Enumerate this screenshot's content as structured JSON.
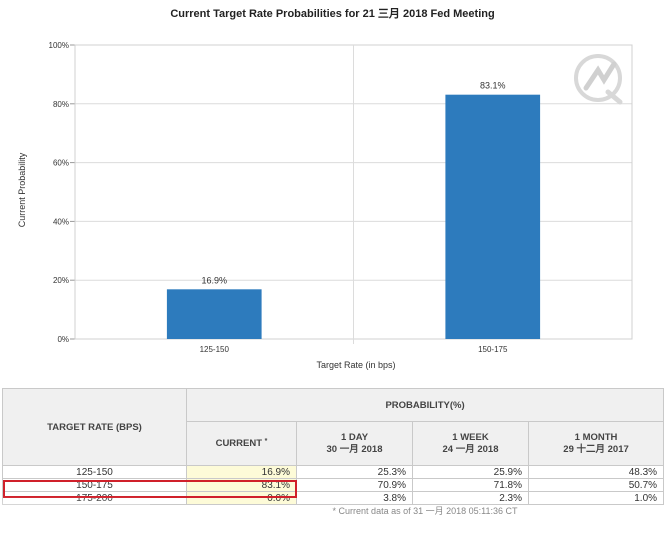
{
  "chart_data": {
    "type": "bar",
    "title": "Current Target Rate Probabilities for 21 三月 2018  Fed Meeting",
    "xlabel": "Target Rate (in bps)",
    "ylabel": "Current Probability",
    "categories": [
      "125-150",
      "150-175"
    ],
    "values": [
      16.9,
      83.1
    ],
    "data_labels": [
      "16.9%",
      "83.1%"
    ],
    "ylim": [
      0,
      100
    ],
    "yticks": [
      0,
      20,
      40,
      60,
      80,
      100
    ],
    "ytick_labels": [
      "0%",
      "20%",
      "40%",
      "60%",
      "80%",
      "100%"
    ],
    "grid": true,
    "bar_color": "#2d7bbd"
  },
  "table": {
    "rate_header": "TARGET RATE (BPS)",
    "prob_header": "PROBABILITY(%)",
    "current_header": "CURRENT",
    "current_mark": "*",
    "col1_line1": "1 DAY",
    "col1_line2": "30 一月 2018",
    "col2_line1": "1 WEEK",
    "col2_line2": "24 一月 2018",
    "col3_line1": "1 MONTH",
    "col3_line2": "29 十二月 2017",
    "rows": [
      {
        "rate": "125-150",
        "current": "16.9%",
        "day": "25.3%",
        "week": "25.9%",
        "month": "48.3%"
      },
      {
        "rate": "150-175",
        "current": "83.1%",
        "day": "70.9%",
        "week": "71.8%",
        "month": "50.7%"
      },
      {
        "rate": "175-200",
        "current": "0.0%",
        "day": "3.8%",
        "week": "2.3%",
        "month": "1.0%"
      }
    ],
    "footnote": "* Current data as of 31 一月 2018 05:11:36 CT"
  },
  "colors": {
    "highlight": "#d0202a",
    "current_bg": "#fdfbd8"
  }
}
